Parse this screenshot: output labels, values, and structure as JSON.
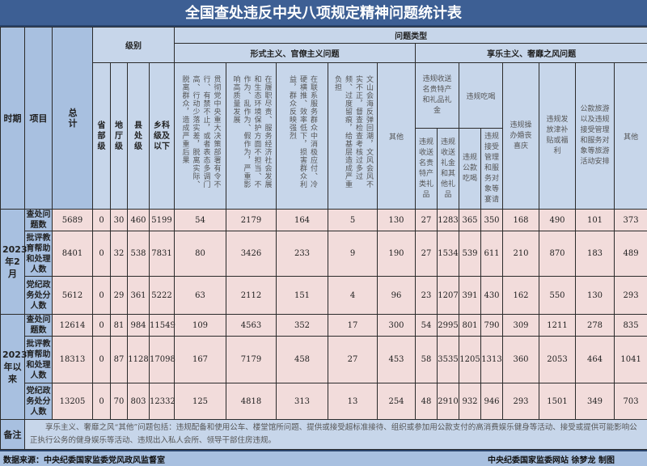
{
  "title": "全国查处违反中央八项规定精神问题统计表",
  "headers": {
    "period": "时期",
    "item": "项目",
    "total": "总计",
    "level": "级别",
    "problem_type": "问题类型",
    "levels": [
      "省部级",
      "地厅级",
      "县处级",
      "乡科级及以下"
    ],
    "formalism": "形式主义、官僚主义问题",
    "formalism_cols": [
      "贯彻党中央重大决策部署有令不行、有禁不止，或者表态多调门高、行动少落实差，脱离实际、脱离群众，造成严重后果",
      "在履职尽责、服务经济社会发展和生态环境保护方面不担当、不作为、乱作为、假作为，严重影响高质量发展",
      "在联系服务群众中消极应付、冷硬横推、效率低下，损害群众利益，群众反映强烈",
      "文山会海反弹回潮，文风会风不实不正，督查检查考核过多过频、过度留痕，给基层造成严重负担",
      "其他"
    ],
    "hedonism": "享乐主义、奢靡之风问题",
    "gifts": "违规收送名贵特产和礼品礼金",
    "gifts_sub": [
      "违规收送名贵特产类礼品",
      "违规收送礼金和其他礼品"
    ],
    "dining": "违规吃喝",
    "dining_sub": [
      "违规公款吃喝",
      "违规接受管理和服务对象等宴请"
    ],
    "weddings": "违规操办婚丧喜庆",
    "subsidies": "违规发放津补贴或福利",
    "travel": "公款旅游以及违规接受管理和服务对象等旅游活动安排",
    "other": "其他"
  },
  "periods": [
    {
      "label": "2023年2月",
      "rows": [
        {
          "item": "查处问题数",
          "values": [
            "5689",
            "0",
            "30",
            "460",
            "5199",
            "54",
            "2179",
            "164",
            "5",
            "130",
            "27",
            "1283",
            "365",
            "350",
            "168",
            "490",
            "101",
            "373"
          ]
        },
        {
          "item": "批评教育帮助和处理人数",
          "values": [
            "8401",
            "0",
            "32",
            "538",
            "7831",
            "80",
            "3426",
            "233",
            "9",
            "190",
            "27",
            "1534",
            "539",
            "611",
            "210",
            "870",
            "183",
            "489"
          ]
        },
        {
          "item": "党纪政务处分人数",
          "values": [
            "5612",
            "0",
            "29",
            "361",
            "5222",
            "63",
            "2112",
            "151",
            "4",
            "96",
            "23",
            "1207",
            "391",
            "430",
            "162",
            "550",
            "130",
            "293"
          ]
        }
      ]
    },
    {
      "label": "2023年以来",
      "rows": [
        {
          "item": "查处问题数",
          "values": [
            "12614",
            "0",
            "81",
            "984",
            "11549",
            "109",
            "4563",
            "352",
            "17",
            "300",
            "54",
            "2995",
            "801",
            "790",
            "309",
            "1211",
            "278",
            "835"
          ]
        },
        {
          "item": "批评教育帮助和处理人数",
          "values": [
            "18313",
            "0",
            "87",
            "1128",
            "17098",
            "167",
            "7179",
            "458",
            "27",
            "453",
            "58",
            "3535",
            "1205",
            "1313",
            "360",
            "2053",
            "464",
            "1041"
          ]
        },
        {
          "item": "党纪政务处分人数",
          "values": [
            "13205",
            "0",
            "70",
            "803",
            "12332",
            "125",
            "4818",
            "313",
            "13",
            "254",
            "48",
            "2910",
            "932",
            "946",
            "293",
            "1501",
            "349",
            "703"
          ]
        }
      ]
    }
  ],
  "note": {
    "label": "备注",
    "text": "享乐主义、奢靡之风“其他”问题包括：违规配备和使用公车、楼堂馆所问题、提供或接受超标准接待、组织或参加用公款支付的高消费娱乐健身等活动、接受或提供可能影响公正执行公务的健身娱乐等活动、违规出入私人会所、领导干部住房违规。"
  },
  "footer": {
    "source": "数据来源：中央纪委国家监委党风政风监督室",
    "credit": "中央纪委国家监委网站 徐梦龙 制图"
  }
}
